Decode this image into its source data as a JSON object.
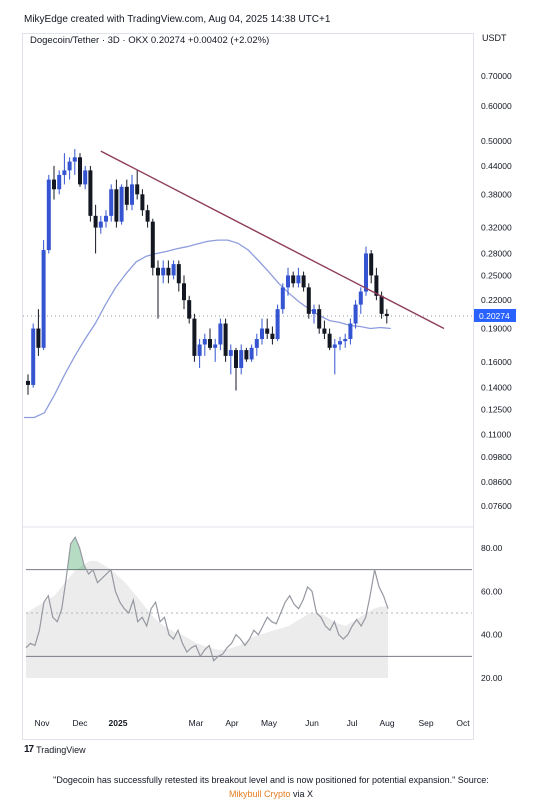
{
  "header": {
    "created_by": "MikyEdge created with TradingView.com, Aug 04, 2025 14:38 UTC+1",
    "symbol_line": "Dogecoin/Tether · 3D · OKX  0.20274  +0.00402 (+2.02%)",
    "currency": "USDT"
  },
  "colors": {
    "candle_up": "#3454d1",
    "candle_down": "#131722",
    "trendline": "#8e3d5c",
    "moving_average": "#8e9ddd",
    "rsi_line": "#9598a1",
    "rsi_band_fill": "#ececec",
    "rsi_overbought_fill": "#2e9e57",
    "price_tag": "#2962ff"
  },
  "chart_data": [
    {
      "type": "candlestick",
      "title": "Dogecoin/Tether · 3D · OKX",
      "scale": "log",
      "y_ticks": [
        "0.70000",
        "0.60000",
        "0.50000",
        "0.44000",
        "0.38000",
        "0.32000",
        "0.28000",
        "0.25000",
        "0.22000",
        "0.19000",
        "0.16000",
        "0.14000",
        "0.12500",
        "0.11000",
        "0.09800",
        "0.08600",
        "0.07600"
      ],
      "current_price_label": "0.20274",
      "x_ticks": [
        "Nov",
        "Dec",
        "2025",
        "Mar",
        "Apr",
        "May",
        "Jun",
        "Jul",
        "Aug",
        "Sep",
        "Oct"
      ],
      "candles": [
        {
          "o": 0.145,
          "h": 0.15,
          "l": 0.135,
          "c": 0.142
        },
        {
          "o": 0.142,
          "h": 0.195,
          "l": 0.14,
          "c": 0.19
        },
        {
          "o": 0.19,
          "h": 0.21,
          "l": 0.165,
          "c": 0.172
        },
        {
          "o": 0.172,
          "h": 0.3,
          "l": 0.17,
          "c": 0.285
        },
        {
          "o": 0.285,
          "h": 0.42,
          "l": 0.28,
          "c": 0.41
        },
        {
          "o": 0.41,
          "h": 0.44,
          "l": 0.37,
          "c": 0.39
        },
        {
          "o": 0.39,
          "h": 0.43,
          "l": 0.38,
          "c": 0.42
        },
        {
          "o": 0.42,
          "h": 0.47,
          "l": 0.4,
          "c": 0.43
        },
        {
          "o": 0.43,
          "h": 0.46,
          "l": 0.41,
          "c": 0.45
        },
        {
          "o": 0.45,
          "h": 0.48,
          "l": 0.42,
          "c": 0.46
        },
        {
          "o": 0.46,
          "h": 0.47,
          "l": 0.395,
          "c": 0.4
        },
        {
          "o": 0.4,
          "h": 0.44,
          "l": 0.39,
          "c": 0.43
        },
        {
          "o": 0.43,
          "h": 0.44,
          "l": 0.33,
          "c": 0.34
        },
        {
          "o": 0.34,
          "h": 0.36,
          "l": 0.28,
          "c": 0.32
        },
        {
          "o": 0.32,
          "h": 0.34,
          "l": 0.31,
          "c": 0.33
        },
        {
          "o": 0.33,
          "h": 0.35,
          "l": 0.32,
          "c": 0.34
        },
        {
          "o": 0.34,
          "h": 0.4,
          "l": 0.33,
          "c": 0.39
        },
        {
          "o": 0.39,
          "h": 0.41,
          "l": 0.32,
          "c": 0.33
        },
        {
          "o": 0.33,
          "h": 0.4,
          "l": 0.325,
          "c": 0.395
        },
        {
          "o": 0.395,
          "h": 0.41,
          "l": 0.35,
          "c": 0.36
        },
        {
          "o": 0.36,
          "h": 0.42,
          "l": 0.35,
          "c": 0.4
        },
        {
          "o": 0.4,
          "h": 0.43,
          "l": 0.37,
          "c": 0.38
        },
        {
          "o": 0.38,
          "h": 0.39,
          "l": 0.34,
          "c": 0.35
        },
        {
          "o": 0.35,
          "h": 0.36,
          "l": 0.32,
          "c": 0.33
        },
        {
          "o": 0.33,
          "h": 0.335,
          "l": 0.25,
          "c": 0.26
        },
        {
          "o": 0.26,
          "h": 0.27,
          "l": 0.2,
          "c": 0.25
        },
        {
          "o": 0.25,
          "h": 0.27,
          "l": 0.24,
          "c": 0.26
        },
        {
          "o": 0.26,
          "h": 0.27,
          "l": 0.24,
          "c": 0.25
        },
        {
          "o": 0.25,
          "h": 0.27,
          "l": 0.245,
          "c": 0.265
        },
        {
          "o": 0.265,
          "h": 0.27,
          "l": 0.23,
          "c": 0.24
        },
        {
          "o": 0.24,
          "h": 0.25,
          "l": 0.21,
          "c": 0.22
        },
        {
          "o": 0.22,
          "h": 0.225,
          "l": 0.195,
          "c": 0.2
        },
        {
          "o": 0.2,
          "h": 0.205,
          "l": 0.16,
          "c": 0.165
        },
        {
          "o": 0.165,
          "h": 0.18,
          "l": 0.155,
          "c": 0.175
        },
        {
          "o": 0.175,
          "h": 0.185,
          "l": 0.165,
          "c": 0.18
        },
        {
          "o": 0.18,
          "h": 0.19,
          "l": 0.17,
          "c": 0.172
        },
        {
          "o": 0.172,
          "h": 0.18,
          "l": 0.16,
          "c": 0.175
        },
        {
          "o": 0.175,
          "h": 0.2,
          "l": 0.17,
          "c": 0.195
        },
        {
          "o": 0.195,
          "h": 0.2,
          "l": 0.16,
          "c": 0.165
        },
        {
          "o": 0.165,
          "h": 0.175,
          "l": 0.15,
          "c": 0.17
        },
        {
          "o": 0.17,
          "h": 0.172,
          "l": 0.138,
          "c": 0.155
        },
        {
          "o": 0.155,
          "h": 0.175,
          "l": 0.15,
          "c": 0.17
        },
        {
          "o": 0.17,
          "h": 0.172,
          "l": 0.16,
          "c": 0.162
        },
        {
          "o": 0.162,
          "h": 0.175,
          "l": 0.16,
          "c": 0.172
        },
        {
          "o": 0.172,
          "h": 0.185,
          "l": 0.165,
          "c": 0.18
        },
        {
          "o": 0.18,
          "h": 0.2,
          "l": 0.175,
          "c": 0.19
        },
        {
          "o": 0.19,
          "h": 0.2,
          "l": 0.18,
          "c": 0.185
        },
        {
          "o": 0.185,
          "h": 0.192,
          "l": 0.175,
          "c": 0.18
        },
        {
          "o": 0.18,
          "h": 0.215,
          "l": 0.178,
          "c": 0.21
        },
        {
          "o": 0.21,
          "h": 0.24,
          "l": 0.205,
          "c": 0.235
        },
        {
          "o": 0.235,
          "h": 0.26,
          "l": 0.225,
          "c": 0.25
        },
        {
          "o": 0.25,
          "h": 0.255,
          "l": 0.235,
          "c": 0.24
        },
        {
          "o": 0.24,
          "h": 0.26,
          "l": 0.235,
          "c": 0.25
        },
        {
          "o": 0.25,
          "h": 0.255,
          "l": 0.23,
          "c": 0.235
        },
        {
          "o": 0.235,
          "h": 0.24,
          "l": 0.2,
          "c": 0.205
        },
        {
          "o": 0.205,
          "h": 0.215,
          "l": 0.195,
          "c": 0.21
        },
        {
          "o": 0.21,
          "h": 0.215,
          "l": 0.185,
          "c": 0.19
        },
        {
          "o": 0.19,
          "h": 0.198,
          "l": 0.18,
          "c": 0.185
        },
        {
          "o": 0.185,
          "h": 0.19,
          "l": 0.17,
          "c": 0.172
        },
        {
          "o": 0.172,
          "h": 0.18,
          "l": 0.15,
          "c": 0.175
        },
        {
          "o": 0.175,
          "h": 0.182,
          "l": 0.17,
          "c": 0.178
        },
        {
          "o": 0.178,
          "h": 0.185,
          "l": 0.172,
          "c": 0.18
        },
        {
          "o": 0.18,
          "h": 0.2,
          "l": 0.175,
          "c": 0.195
        },
        {
          "o": 0.195,
          "h": 0.22,
          "l": 0.19,
          "c": 0.215
        },
        {
          "o": 0.215,
          "h": 0.235,
          "l": 0.205,
          "c": 0.23
        },
        {
          "o": 0.23,
          "h": 0.29,
          "l": 0.225,
          "c": 0.28
        },
        {
          "o": 0.28,
          "h": 0.285,
          "l": 0.24,
          "c": 0.25
        },
        {
          "o": 0.25,
          "h": 0.26,
          "l": 0.22,
          "c": 0.225
        },
        {
          "o": 0.225,
          "h": 0.23,
          "l": 0.2,
          "c": 0.205
        },
        {
          "o": 0.205,
          "h": 0.21,
          "l": 0.195,
          "c": 0.2027
        }
      ],
      "trendline": [
        {
          "i": 14,
          "price": 0.475
        },
        {
          "i": 80,
          "price": 0.19
        }
      ],
      "moving_average": [
        0.12,
        0.12,
        0.123,
        0.135,
        0.15,
        0.165,
        0.18,
        0.195,
        0.215,
        0.235,
        0.252,
        0.268,
        0.276,
        0.28,
        0.283,
        0.287,
        0.29,
        0.294,
        0.298,
        0.3,
        0.3,
        0.295,
        0.285,
        0.27,
        0.255,
        0.24,
        0.228,
        0.218,
        0.21,
        0.203,
        0.198,
        0.196,
        0.193,
        0.192,
        0.19,
        0.191,
        0.19
      ],
      "price_line": 0.20274
    },
    {
      "type": "line",
      "title": "",
      "y_ticks": [
        "80.00",
        "60.00",
        "40.00",
        "20.00"
      ],
      "bands": [
        70,
        50,
        30
      ],
      "rsi": [
        34,
        36,
        35,
        42,
        55,
        58,
        48,
        46,
        52,
        66,
        82,
        85,
        80,
        72,
        68,
        70,
        64,
        66,
        68,
        70,
        60,
        55,
        52,
        50,
        56,
        46,
        48,
        44,
        52,
        55,
        46,
        48,
        40,
        38,
        42,
        36,
        32,
        34,
        35,
        30,
        33,
        35,
        28,
        30,
        31,
        34,
        36,
        40,
        38,
        35,
        38,
        42,
        40,
        44,
        48,
        46,
        45,
        50,
        55,
        58,
        54,
        52,
        56,
        62,
        60,
        50,
        48,
        44,
        42,
        46,
        40,
        38,
        40,
        44,
        47,
        44,
        48,
        58,
        70,
        62,
        58,
        52
      ],
      "rsi_ma": [
        50,
        52,
        54,
        56,
        58,
        62,
        66,
        70,
        72,
        74,
        74,
        72,
        70,
        67,
        64,
        60,
        56,
        52,
        48,
        45,
        43,
        41,
        40,
        38,
        36,
        35,
        34,
        33,
        33,
        34,
        35,
        37,
        39,
        40,
        41,
        42,
        43,
        44,
        46,
        48,
        50,
        50,
        49,
        47,
        45,
        44,
        46,
        48,
        50,
        52,
        53,
        53
      ],
      "x_ticks": [
        "Nov",
        "Dec",
        "2025",
        "Mar",
        "Apr",
        "May",
        "Jun",
        "Jul",
        "Aug",
        "Sep",
        "Oct"
      ]
    }
  ],
  "footer": {
    "tradingview_brand": "TradingView",
    "caption_line1": "\"Dogecoin has successfully retested its breakout level and is now positioned for potential expansion.\" Source:",
    "caption_source": "Mikybull Crypto",
    "caption_via": " via X"
  }
}
